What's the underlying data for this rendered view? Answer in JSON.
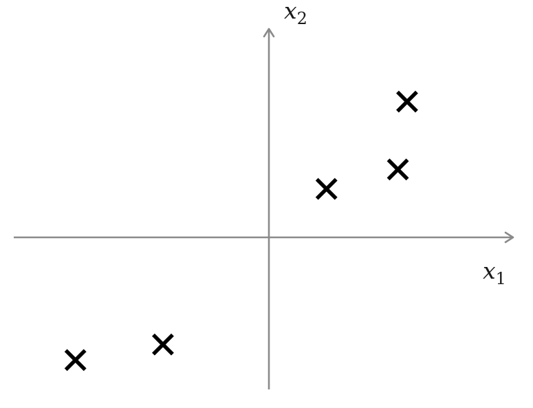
{
  "chart_data": {
    "type": "scatter",
    "title": "",
    "xlabel": "x",
    "xlabel_subscript": "1",
    "ylabel": "x",
    "ylabel_subscript": "2",
    "marker": "cross",
    "marker_color": "#000000",
    "axis_color": "#8a8a8a",
    "grid": false,
    "legend": "none",
    "xlim": [
      -5.3,
      5.3
    ],
    "ylim": [
      -3.05,
      4.3
    ],
    "points": [
      {
        "x": -4.2,
        "y": -2.53
      },
      {
        "x": -2.3,
        "y": -2.21
      },
      {
        "x": 1.25,
        "y": 1.0
      },
      {
        "x": 2.8,
        "y": 1.4
      },
      {
        "x": 3.0,
        "y": 2.8
      }
    ]
  }
}
